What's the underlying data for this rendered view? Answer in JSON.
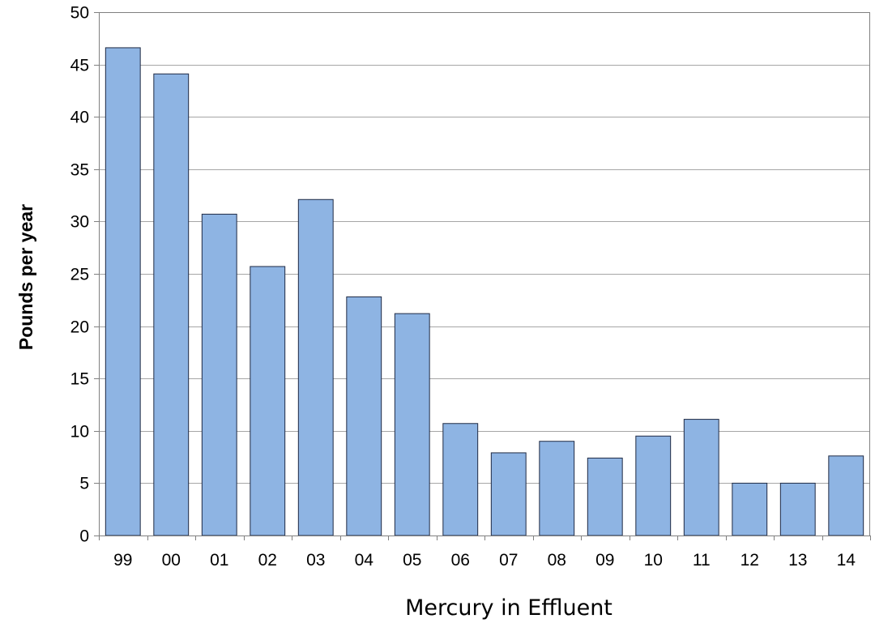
{
  "chart_data": {
    "type": "bar",
    "title": "",
    "xlabel": "Mercury in Effluent",
    "ylabel": "Pounds per year",
    "ylim": [
      0,
      50
    ],
    "yticks": [
      0,
      5,
      10,
      15,
      20,
      25,
      30,
      35,
      40,
      45,
      50
    ],
    "grid": true,
    "legend": "none",
    "categories": [
      "99",
      "00",
      "01",
      "02",
      "03",
      "04",
      "05",
      "06",
      "07",
      "08",
      "09",
      "10",
      "11",
      "12",
      "13",
      "14"
    ],
    "values": [
      46.6,
      44.1,
      30.7,
      25.7,
      32.1,
      22.8,
      21.2,
      10.7,
      7.9,
      9.0,
      7.4,
      9.5,
      11.1,
      5.0,
      5.0,
      7.6
    ],
    "colors": {
      "bar_fill": "#8eb4e3",
      "bar_stroke": "#1f2a44",
      "gridline": "#a6a6a6",
      "axis": "#808080"
    }
  }
}
